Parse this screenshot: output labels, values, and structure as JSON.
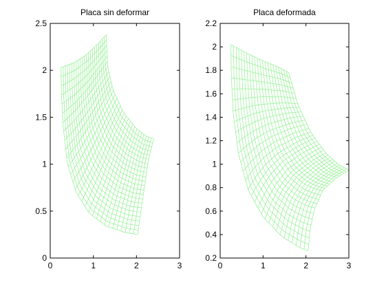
{
  "chart_data": [
    {
      "type": "line",
      "title": "Placa sin deformar",
      "xlabel": "",
      "ylabel": "",
      "xlim": [
        0,
        3
      ],
      "ylim": [
        0,
        2.5
      ],
      "xticks": [
        "0",
        "1",
        "2",
        "3"
      ],
      "yticks": [
        "0",
        "0.5",
        "1",
        "1.5",
        "2",
        "2.5"
      ],
      "grid": false,
      "mesh_color": "#8ff08f",
      "mesh_rows": 30,
      "mesh_cols": 22,
      "outline": {
        "left_edge": [
          [
            0.25,
            2.03
          ],
          [
            0.26,
            1.75
          ],
          [
            0.3,
            1.4
          ],
          [
            0.4,
            1.0
          ],
          [
            0.6,
            0.7
          ],
          [
            0.9,
            0.48
          ],
          [
            1.3,
            0.34
          ],
          [
            1.75,
            0.27
          ],
          [
            2.03,
            0.25
          ]
        ],
        "right_edge": [
          [
            1.3,
            2.38
          ],
          [
            1.33,
            2.05
          ],
          [
            1.45,
            1.8
          ],
          [
            1.7,
            1.55
          ],
          [
            2.0,
            1.38
          ],
          [
            2.22,
            1.3
          ],
          [
            2.4,
            1.27
          ]
        ],
        "top_edge": [
          [
            0.25,
            2.03
          ],
          [
            0.55,
            2.08
          ],
          [
            0.85,
            2.17
          ],
          [
            1.1,
            2.28
          ],
          [
            1.3,
            2.38
          ]
        ],
        "bottom_edge": [
          [
            2.03,
            0.25
          ],
          [
            2.11,
            0.53
          ],
          [
            2.2,
            0.8
          ],
          [
            2.28,
            1.05
          ],
          [
            2.4,
            1.27
          ]
        ]
      }
    },
    {
      "type": "line",
      "title": "Placa deformada",
      "xlabel": "",
      "ylabel": "",
      "xlim": [
        0,
        3
      ],
      "ylim": [
        0.2,
        2.2
      ],
      "xticks": [
        "0",
        "1",
        "2",
        "3"
      ],
      "yticks": [
        "0.2",
        "0.4",
        "0.6",
        "0.8",
        "1",
        "1.2",
        "1.4",
        "1.6",
        "1.8",
        "2",
        "2.2"
      ],
      "grid": false,
      "mesh_color": "#8ff08f",
      "mesh_rows": 30,
      "mesh_cols": 22,
      "outline": {
        "left_edge": [
          [
            0.25,
            2.02
          ],
          [
            0.26,
            1.75
          ],
          [
            0.3,
            1.45
          ],
          [
            0.42,
            1.1
          ],
          [
            0.65,
            0.78
          ],
          [
            1.0,
            0.55
          ],
          [
            1.45,
            0.38
          ],
          [
            1.85,
            0.29
          ],
          [
            2.05,
            0.26
          ]
        ],
        "right_edge": [
          [
            1.6,
            1.78
          ],
          [
            1.8,
            1.52
          ],
          [
            2.1,
            1.28
          ],
          [
            2.45,
            1.1
          ],
          [
            2.75,
            1.0
          ],
          [
            3.0,
            0.95
          ]
        ],
        "top_edge": [
          [
            0.25,
            2.02
          ],
          [
            0.6,
            1.95
          ],
          [
            1.0,
            1.88
          ],
          [
            1.35,
            1.83
          ],
          [
            1.6,
            1.78
          ]
        ],
        "bottom_edge": [
          [
            2.05,
            0.26
          ],
          [
            2.1,
            0.45
          ],
          [
            2.2,
            0.62
          ],
          [
            2.4,
            0.78
          ],
          [
            2.7,
            0.88
          ],
          [
            3.0,
            0.95
          ]
        ]
      }
    }
  ]
}
